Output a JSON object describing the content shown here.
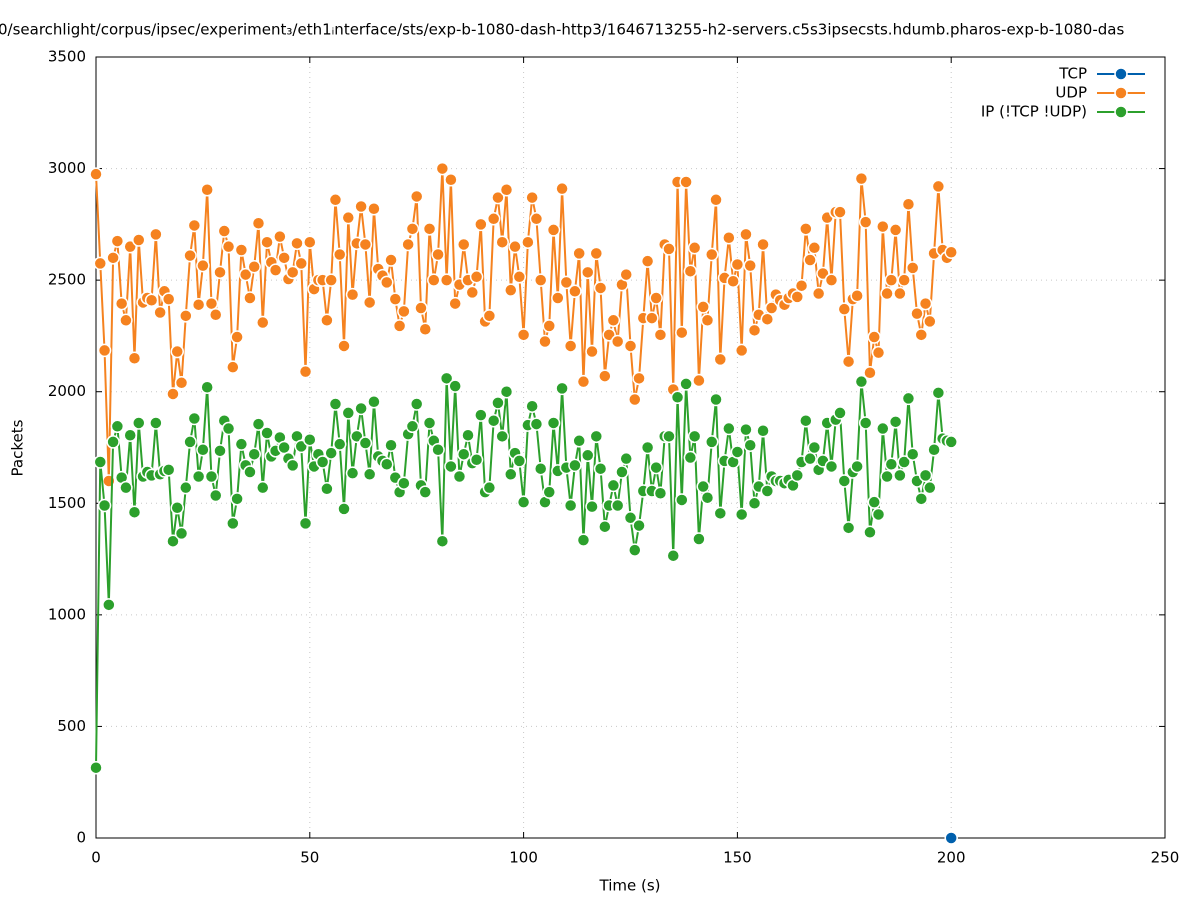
{
  "chart_data": {
    "type": "line",
    "title": "0/searchlight/corpus/ipsec/experiment₃/eth1ᵢnterface/sts/exp-b-1080-dash-http3/1646713255-h2-servers.c5s3ipsecsts.hdumb.pharos-exp-b-1080-das",
    "x_label": "Time (s)",
    "y_label": "Packets",
    "xlim": [
      0,
      250
    ],
    "xticks": [
      0,
      50,
      100,
      150,
      200,
      250
    ],
    "ylim": [
      0,
      3500
    ],
    "yticks": [
      0,
      500,
      1000,
      1500,
      2000,
      2500,
      3000,
      3500
    ],
    "grid": true,
    "legend": "top-right",
    "x": [
      0,
      1,
      2,
      3,
      4,
      5,
      6,
      7,
      8,
      9,
      10,
      11,
      12,
      13,
      14,
      15,
      16,
      17,
      18,
      19,
      20,
      21,
      22,
      23,
      24,
      25,
      26,
      27,
      28,
      29,
      30,
      31,
      32,
      33,
      34,
      35,
      36,
      37,
      38,
      39,
      40,
      41,
      42,
      43,
      44,
      45,
      46,
      47,
      48,
      49,
      50,
      51,
      52,
      53,
      54,
      55,
      56,
      57,
      58,
      59,
      60,
      61,
      62,
      63,
      64,
      65,
      66,
      67,
      68,
      69,
      70,
      71,
      72,
      73,
      74,
      75,
      76,
      77,
      78,
      79,
      80,
      81,
      82,
      83,
      84,
      85,
      86,
      87,
      88,
      89,
      90,
      91,
      92,
      93,
      94,
      95,
      96,
      97,
      98,
      99,
      100,
      101,
      102,
      103,
      104,
      105,
      106,
      107,
      108,
      109,
      110,
      111,
      112,
      113,
      114,
      115,
      116,
      117,
      118,
      119,
      120,
      121,
      122,
      123,
      124,
      125,
      126,
      127,
      128,
      129,
      130,
      131,
      132,
      133,
      134,
      135,
      136,
      137,
      138,
      139,
      140,
      141,
      142,
      143,
      144,
      145,
      146,
      147,
      148,
      149,
      150,
      151,
      152,
      153,
      154,
      155,
      156,
      157,
      158,
      159,
      160,
      161,
      162,
      163,
      164,
      165,
      166,
      167,
      168,
      169,
      170,
      171,
      172,
      173,
      174,
      175,
      176,
      177,
      178,
      179,
      180,
      181,
      182,
      183,
      184,
      185,
      186,
      187,
      188,
      189,
      190,
      191,
      192,
      193,
      194,
      195,
      196,
      197,
      198,
      199,
      200
    ],
    "series": [
      {
        "name": "TCP",
        "color": "#0060ad",
        "x": [
          200
        ],
        "values": [
          0
        ]
      },
      {
        "name": "UDP",
        "color": "#f5821f",
        "values": [
          2975,
          2575,
          2185,
          1600,
          2600,
          2675,
          2395,
          2320,
          2650,
          2150,
          2680,
          2400,
          2420,
          2410,
          2705,
          2355,
          2450,
          2415,
          1990,
          2180,
          2040,
          2340,
          2610,
          2745,
          2390,
          2565,
          2905,
          2395,
          2345,
          2535,
          2720,
          2650,
          2110,
          2245,
          2635,
          2525,
          2420,
          2560,
          2755,
          2310,
          2670,
          2580,
          2545,
          2695,
          2600,
          2505,
          2535,
          2665,
          2575,
          2090,
          2670,
          2460,
          2500,
          2500,
          2320,
          2500,
          2860,
          2615,
          2205,
          2780,
          2435,
          2665,
          2830,
          2660,
          2400,
          2820,
          2550,
          2520,
          2490,
          2590,
          2415,
          2295,
          2360,
          2660,
          2730,
          2875,
          2375,
          2280,
          2730,
          2500,
          2615,
          3000,
          2500,
          2950,
          2395,
          2480,
          2660,
          2500,
          2445,
          2515,
          2750,
          2315,
          2340,
          2775,
          2870,
          2670,
          2905,
          2455,
          2650,
          2515,
          2255,
          2670,
          2870,
          2775,
          2500,
          2225,
          2295,
          2725,
          2420,
          2910,
          2490,
          2205,
          2450,
          2620,
          2045,
          2535,
          2180,
          2620,
          2465,
          2070,
          2255,
          2320,
          2225,
          2480,
          2525,
          2205,
          1965,
          2060,
          2330,
          2585,
          2330,
          2420,
          2255,
          2660,
          2640,
          2010,
          2940,
          2265,
          2940,
          2540,
          2645,
          2050,
          2380,
          2320,
          2615,
          2860,
          2145,
          2510,
          2690,
          2495,
          2570,
          2185,
          2705,
          2565,
          2275,
          2345,
          2660,
          2325,
          2375,
          2435,
          2410,
          2390,
          2420,
          2440,
          2425,
          2475,
          2730,
          2590,
          2645,
          2440,
          2530,
          2780,
          2500,
          2805,
          2805,
          2370,
          2135,
          2415,
          2430,
          2955,
          2760,
          2085,
          2245,
          2175,
          2740,
          2440,
          2500,
          2725,
          2440,
          2500,
          2840,
          2555,
          2350,
          2255,
          2395,
          2315,
          2620,
          2920,
          2635,
          2600,
          2625
        ]
      },
      {
        "name": "IP (!TCP  !UDP)",
        "color": "#2ca02c",
        "values": [
          315,
          1685,
          1490,
          1045,
          1775,
          1845,
          1615,
          1570,
          1805,
          1460,
          1860,
          1620,
          1640,
          1625,
          1860,
          1630,
          1645,
          1650,
          1330,
          1480,
          1365,
          1570,
          1775,
          1880,
          1620,
          1740,
          2020,
          1620,
          1535,
          1735,
          1870,
          1835,
          1410,
          1520,
          1765,
          1670,
          1640,
          1720,
          1855,
          1570,
          1815,
          1710,
          1735,
          1795,
          1750,
          1700,
          1670,
          1800,
          1755,
          1410,
          1785,
          1665,
          1720,
          1685,
          1565,
          1725,
          1945,
          1765,
          1475,
          1905,
          1635,
          1800,
          1925,
          1770,
          1630,
          1955,
          1710,
          1690,
          1675,
          1760,
          1615,
          1550,
          1590,
          1810,
          1845,
          1945,
          1580,
          1550,
          1860,
          1780,
          1740,
          1330,
          2060,
          1665,
          2025,
          1620,
          1720,
          1805,
          1680,
          1695,
          1895,
          1550,
          1570,
          1870,
          1950,
          1800,
          2000,
          1630,
          1725,
          1690,
          1505,
          1850,
          1935,
          1855,
          1655,
          1505,
          1550,
          1860,
          1645,
          2015,
          1660,
          1490,
          1670,
          1780,
          1335,
          1715,
          1485,
          1800,
          1655,
          1395,
          1490,
          1580,
          1490,
          1640,
          1700,
          1435,
          1290,
          1400,
          1555,
          1750,
          1555,
          1660,
          1545,
          1800,
          1800,
          1265,
          1975,
          1515,
          2035,
          1705,
          1800,
          1340,
          1575,
          1525,
          1775,
          1965,
          1455,
          1690,
          1835,
          1685,
          1730,
          1450,
          1830,
          1760,
          1500,
          1575,
          1825,
          1555,
          1620,
          1600,
          1600,
          1590,
          1605,
          1580,
          1625,
          1685,
          1870,
          1700,
          1750,
          1650,
          1690,
          1860,
          1665,
          1875,
          1905,
          1600,
          1390,
          1640,
          1665,
          2045,
          1860,
          1370,
          1505,
          1450,
          1835,
          1620,
          1675,
          1865,
          1625,
          1685,
          1970,
          1720,
          1600,
          1520,
          1625,
          1570,
          1740,
          1995,
          1790,
          1780,
          1775
        ]
      }
    ]
  }
}
